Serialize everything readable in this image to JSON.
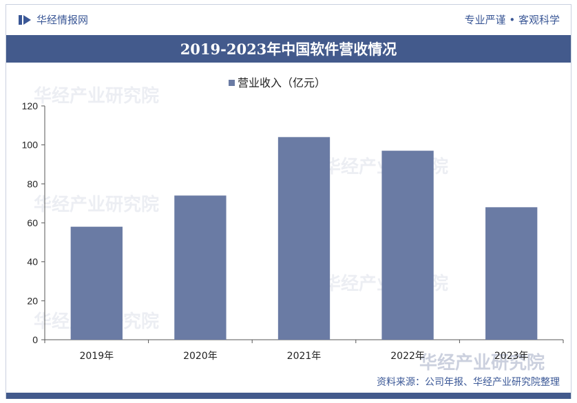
{
  "header": {
    "brand": "华经情报网",
    "slogan": "专业严谨 • 客观科学",
    "title": "2019-2023年中国软件营收情况"
  },
  "footer": {
    "source": "资料来源：公司年报、华经产业研究院整理",
    "watermark": "华经产业研究院"
  },
  "colors": {
    "bar": "#6a7ba4",
    "accent": "#435a8c",
    "text": "#3a5796"
  },
  "chart_data": {
    "type": "bar",
    "categories": [
      "2019年",
      "2020年",
      "2021年",
      "2022年",
      "2023年"
    ],
    "series": [
      {
        "name": "营业收入（亿元）",
        "values": [
          58,
          74,
          104,
          97,
          68
        ]
      }
    ],
    "ylim": [
      0,
      120
    ],
    "yticks": [
      0,
      20,
      40,
      60,
      80,
      100,
      120
    ],
    "legend": "top-center",
    "grid": false
  }
}
